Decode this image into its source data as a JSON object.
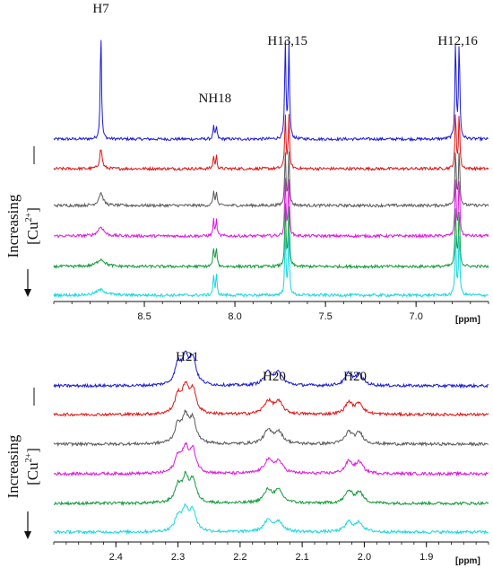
{
  "chart_data": [
    {
      "type": "line",
      "subtype": "stacked-spectra",
      "x_unit_label": "[ppm]",
      "xlim": [
        9.0,
        6.6
      ],
      "x_reversed": true,
      "x_ticks": [
        8.5,
        8.0,
        7.5,
        7.0
      ],
      "x_tick_labels": [
        "8.5",
        "8.0",
        "7.5",
        "7.0"
      ],
      "side_label": {
        "line1": "Increasing",
        "line2_prefix": "[Cu",
        "line2_sup": "2+",
        "line2_suffix": "]"
      },
      "peak_labels": [
        {
          "text": "H7",
          "x": 8.74
        },
        {
          "text": "NH18",
          "x": 8.11
        },
        {
          "text": "H13,15",
          "x": 7.71
        },
        {
          "text": "H12,16",
          "x": 6.77
        }
      ],
      "peaks": [
        {
          "x": 8.74,
          "width": 0.004,
          "heights": [
            122,
            22,
            14,
            10,
            8,
            6
          ],
          "widen": [
            1,
            2,
            3.5,
            5,
            6.5,
            8
          ]
        },
        {
          "x": 8.118,
          "width": 0.004,
          "heights": [
            14,
            14,
            16,
            18,
            21,
            22
          ],
          "widen": [
            1,
            1,
            1,
            1,
            1,
            1
          ]
        },
        {
          "x": 8.102,
          "width": 0.004,
          "heights": [
            14,
            14,
            16,
            18,
            21,
            22
          ],
          "widen": [
            1,
            1,
            1,
            1,
            1,
            1
          ]
        },
        {
          "x": 7.722,
          "width": 0.004,
          "heights": [
            108,
            60,
            60,
            64,
            68,
            70
          ],
          "widen": [
            1,
            1,
            1,
            1,
            1,
            1
          ]
        },
        {
          "x": 7.702,
          "width": 0.004,
          "heights": [
            106,
            58,
            58,
            62,
            66,
            68
          ],
          "widen": [
            1,
            1,
            1,
            1,
            1,
            1
          ]
        },
        {
          "x": 6.782,
          "width": 0.004,
          "heights": [
            110,
            62,
            62,
            64,
            66,
            68
          ],
          "widen": [
            1,
            1,
            1,
            1,
            1,
            1
          ]
        },
        {
          "x": 6.762,
          "width": 0.004,
          "heights": [
            110,
            62,
            62,
            64,
            66,
            68
          ],
          "widen": [
            1,
            1,
            1,
            1,
            1,
            1
          ]
        }
      ],
      "series": [
        {
          "color": "#1a1adb"
        },
        {
          "color": "#e01414"
        },
        {
          "color": "#5a5a5a"
        },
        {
          "color": "#e014e0"
        },
        {
          "color": "#139a3a"
        },
        {
          "color": "#16d6e0"
        }
      ]
    },
    {
      "type": "line",
      "subtype": "stacked-spectra",
      "x_unit_label": "[ppm]",
      "xlim": [
        2.5,
        1.8
      ],
      "x_reversed": true,
      "x_ticks": [
        2.4,
        2.3,
        2.2,
        2.1,
        2.0,
        1.9
      ],
      "x_tick_labels": [
        "2.4",
        "2.3",
        "2.2",
        "2.1",
        "2.0",
        "1.9"
      ],
      "side_label": {
        "line1": "Increasing",
        "line2_prefix": "[Cu",
        "line2_sup": "2+",
        "line2_suffix": "]"
      },
      "peak_labels": [
        {
          "text": "H21",
          "x": 2.285
        },
        {
          "text": "H20",
          "x": 2.145
        },
        {
          "text": "H20",
          "x": 2.015
        }
      ],
      "peaks": [
        {
          "x": 2.3,
          "width": 0.006,
          "heights": [
            22,
            20,
            20,
            18,
            18,
            16
          ],
          "widen": [
            1,
            1,
            1,
            1,
            1,
            1
          ]
        },
        {
          "x": 2.288,
          "width": 0.006,
          "heights": [
            30,
            28,
            28,
            26,
            26,
            24
          ],
          "widen": [
            1,
            1,
            1,
            1,
            1,
            1
          ]
        },
        {
          "x": 2.276,
          "width": 0.006,
          "heights": [
            28,
            26,
            26,
            24,
            24,
            22
          ],
          "widen": [
            1,
            1,
            1,
            1,
            1,
            1
          ]
        },
        {
          "x": 2.155,
          "width": 0.008,
          "heights": [
            14,
            14,
            14,
            14,
            14,
            12
          ],
          "widen": [
            1,
            1,
            1,
            1,
            1,
            1
          ]
        },
        {
          "x": 2.138,
          "width": 0.008,
          "heights": [
            13,
            13,
            13,
            13,
            13,
            11
          ],
          "widen": [
            1,
            1,
            1,
            1,
            1,
            1
          ]
        },
        {
          "x": 2.025,
          "width": 0.007,
          "heights": [
            13,
            13,
            13,
            13,
            13,
            11
          ],
          "widen": [
            1,
            1,
            1,
            1,
            1,
            1
          ]
        },
        {
          "x": 2.008,
          "width": 0.007,
          "heights": [
            12,
            12,
            12,
            12,
            12,
            10
          ],
          "widen": [
            1,
            1,
            1,
            1,
            1,
            1
          ]
        }
      ],
      "series": [
        {
          "color": "#1a1adb"
        },
        {
          "color": "#e01414"
        },
        {
          "color": "#5a5a5a"
        },
        {
          "color": "#e014e0"
        },
        {
          "color": "#139a3a"
        },
        {
          "color": "#16d6e0"
        }
      ]
    }
  ]
}
